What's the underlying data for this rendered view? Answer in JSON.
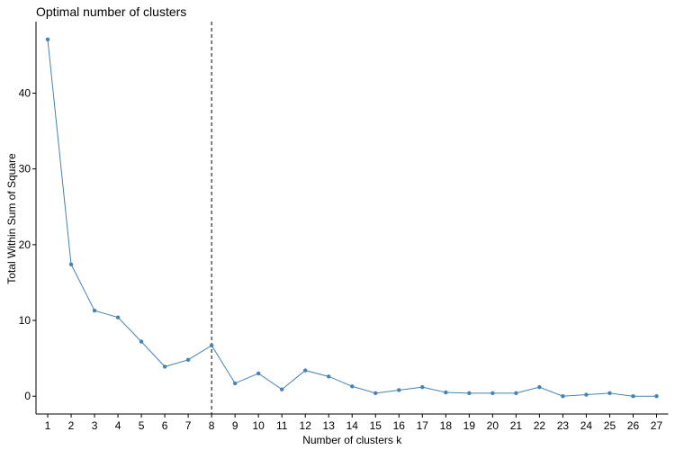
{
  "chart_data": {
    "type": "line",
    "title": "Optimal number of clusters",
    "xlabel": "Number of clusters k",
    "ylabel": "Total Within Sum of Square",
    "x": [
      1,
      2,
      3,
      4,
      5,
      6,
      7,
      8,
      9,
      10,
      11,
      12,
      13,
      14,
      15,
      16,
      17,
      18,
      19,
      20,
      21,
      22,
      23,
      24,
      25,
      26,
      27
    ],
    "series": [
      {
        "values": [
          47.1,
          17.4,
          11.3,
          10.4,
          7.2,
          3.9,
          4.8,
          6.7,
          1.7,
          3.0,
          0.9,
          3.4,
          2.6,
          1.3,
          0.4,
          0.8,
          1.2,
          0.5,
          0.4,
          0.4,
          0.4,
          1.2,
          0.0,
          0.2,
          0.4,
          0.0,
          0.0
        ]
      }
    ],
    "xlim": [
      0.5,
      27.5
    ],
    "ylim": [
      -2.35,
      49.45
    ],
    "x_ticks": [
      "1",
      "2",
      "3",
      "4",
      "5",
      "6",
      "7",
      "8",
      "9",
      "10",
      "11",
      "12",
      "13",
      "14",
      "15",
      "16",
      "17",
      "18",
      "19",
      "20",
      "21",
      "22",
      "23",
      "24",
      "25",
      "26",
      "27"
    ],
    "y_ticks": [
      0,
      10,
      20,
      30,
      40
    ],
    "optimal_k": 8,
    "grid": false,
    "legend": "none",
    "colors": {
      "line": "#4682B4",
      "point": "#4682B4",
      "axis": "#000000",
      "reference_line": "#000000"
    }
  }
}
